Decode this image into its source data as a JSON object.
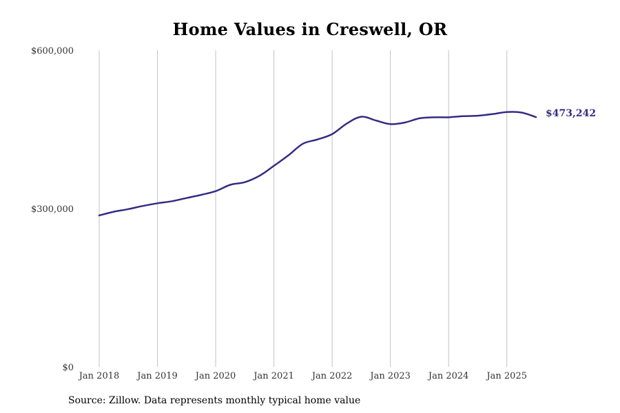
{
  "title": "Home Values in Creswell, OR",
  "source": "Source: Zillow. Data represents monthly typical home value",
  "colors": {
    "line": "#352b82",
    "grid": "#c2c2c2"
  },
  "chart_data": {
    "type": "line",
    "title": "Home Values in Creswell, OR",
    "xlabel": "",
    "ylabel": "",
    "ylim": [
      0,
      600000
    ],
    "xlim": [
      "2018-01",
      "2025-07"
    ],
    "grid": "vertical",
    "y_ticks": [
      0,
      300000,
      600000
    ],
    "y_tick_labels": [
      "$0",
      "$300,000",
      "$600,000"
    ],
    "x_ticks": [
      "2018-01",
      "2019-01",
      "2020-01",
      "2021-01",
      "2022-01",
      "2023-01",
      "2024-01",
      "2025-01"
    ],
    "x_tick_labels": [
      "Jan 2018",
      "Jan 2019",
      "Jan 2020",
      "Jan 2021",
      "Jan 2022",
      "Jan 2023",
      "Jan 2024",
      "Jan 2025"
    ],
    "end_label": "$473,242",
    "series": [
      {
        "x": [
          "2018-01",
          "2018-04",
          "2018-07",
          "2018-10",
          "2019-01",
          "2019-04",
          "2019-07",
          "2019-10",
          "2020-01",
          "2020-04",
          "2020-07",
          "2020-10",
          "2021-01",
          "2021-04",
          "2021-07",
          "2021-10",
          "2022-01",
          "2022-04",
          "2022-07",
          "2022-10",
          "2023-01",
          "2023-04",
          "2023-07",
          "2023-10",
          "2024-01",
          "2024-04",
          "2024-07",
          "2024-10",
          "2025-01",
          "2025-04",
          "2025-07"
        ],
        "values": [
          287000,
          294000,
          299000,
          305000,
          310000,
          314000,
          320000,
          326000,
          333000,
          345000,
          350000,
          362000,
          381000,
          401000,
          423000,
          431000,
          441000,
          461000,
          474000,
          467000,
          460000,
          463000,
          471000,
          473000,
          473000,
          475000,
          476000,
          479000,
          483000,
          482000,
          473242
        ]
      }
    ]
  }
}
